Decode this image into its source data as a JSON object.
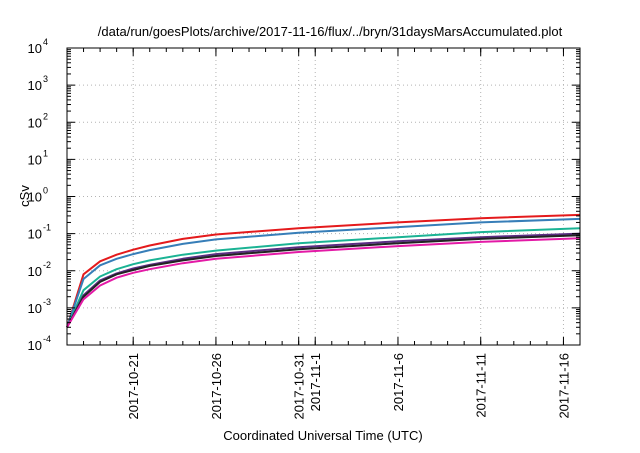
{
  "chart_data": {
    "type": "line",
    "title": "/data/run/goesPlots/archive/2017-11-16/flux/../bryn/31daysMarsAccumulated.plot",
    "xlabel": "Coordinated Universal Time (UTC)",
    "ylabel": "cSv",
    "y_scale": "log",
    "ylim": [
      0.0001,
      10000
    ],
    "xlim": [
      "2017-10-17",
      "2017-11-17"
    ],
    "grid": true,
    "legend": "none",
    "y_ticks": [
      {
        "value": 0.0001,
        "base": "10",
        "exp": "-4"
      },
      {
        "value": 0.001,
        "base": "10",
        "exp": "-3"
      },
      {
        "value": 0.01,
        "base": "10",
        "exp": "-2"
      },
      {
        "value": 0.1,
        "base": "10",
        "exp": "-1"
      },
      {
        "value": 1,
        "base": "10",
        "exp": "0"
      },
      {
        "value": 10,
        "base": "10",
        "exp": "1"
      },
      {
        "value": 100,
        "base": "10",
        "exp": "2"
      },
      {
        "value": 1000,
        "base": "10",
        "exp": "3"
      },
      {
        "value": 10000,
        "base": "10",
        "exp": "4"
      }
    ],
    "x_ticks": [
      "2017-10-21",
      "2017-10-26",
      "2017-10-31",
      "2017-11-1",
      "2017-11-6",
      "2017-11-11",
      "2017-11-16"
    ],
    "x_tick_dates": [
      "2017-10-21",
      "2017-10-26",
      "2017-10-31",
      "2017-11-01",
      "2017-11-06",
      "2017-11-11",
      "2017-11-16"
    ],
    "x_dates": [
      "2017-10-17",
      "2017-10-18",
      "2017-10-19",
      "2017-10-20",
      "2017-10-21",
      "2017-10-22",
      "2017-10-24",
      "2017-10-26",
      "2017-10-31",
      "2017-11-06",
      "2017-11-11",
      "2017-11-17"
    ],
    "series": [
      {
        "color": "#e41a1c",
        "values": [
          0.0003,
          0.008,
          0.018,
          0.027,
          0.037,
          0.048,
          0.072,
          0.095,
          0.14,
          0.2,
          0.26,
          0.32
        ]
      },
      {
        "color": "#377eb8",
        "values": [
          0.0003,
          0.006,
          0.014,
          0.021,
          0.028,
          0.036,
          0.053,
          0.07,
          0.105,
          0.15,
          0.2,
          0.25
        ]
      },
      {
        "color": "#1bb394",
        "values": [
          0.0003,
          0.003,
          0.007,
          0.011,
          0.015,
          0.019,
          0.027,
          0.035,
          0.055,
          0.08,
          0.11,
          0.14
        ]
      },
      {
        "color": "#5a2d82",
        "values": [
          0.0003,
          0.0022,
          0.0055,
          0.0085,
          0.0115,
          0.0145,
          0.021,
          0.028,
          0.043,
          0.062,
          0.08,
          0.1
        ]
      },
      {
        "color": "#222222",
        "values": [
          0.0003,
          0.002,
          0.005,
          0.008,
          0.0105,
          0.0135,
          0.019,
          0.025,
          0.038,
          0.055,
          0.072,
          0.09
        ]
      },
      {
        "color": "#e31aa6",
        "values": [
          0.0003,
          0.0017,
          0.004,
          0.0065,
          0.0088,
          0.011,
          0.016,
          0.021,
          0.032,
          0.046,
          0.06,
          0.075
        ]
      }
    ]
  }
}
